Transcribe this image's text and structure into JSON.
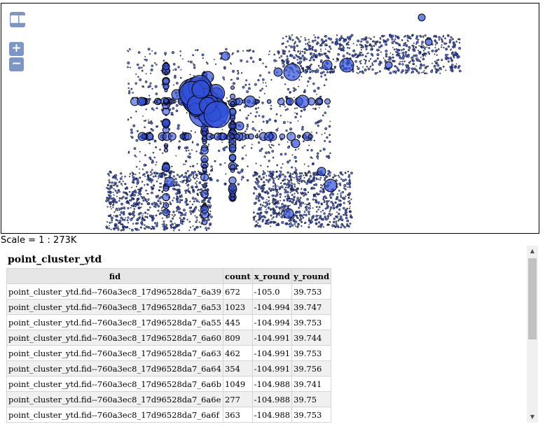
{
  "map": {
    "controls": {
      "layers_glyph": "■■■",
      "zoom_in": "+",
      "zoom_out": "−"
    },
    "symbol_color": "#3050d8",
    "symbol_stroke": "#000000",
    "scale_text": "Scale = 1 : 273K"
  },
  "results": {
    "layer_title": "point_cluster_ytd",
    "columns": [
      "fid",
      "count",
      "x_round",
      "y_round"
    ],
    "rows": [
      [
        "point_cluster_ytd.fid--760a3ec8_17d96528da7_6a39",
        "672",
        "-105.0",
        "39.753"
      ],
      [
        "point_cluster_ytd.fid--760a3ec8_17d96528da7_6a53",
        "1023",
        "-104.994",
        "39.747"
      ],
      [
        "point_cluster_ytd.fid--760a3ec8_17d96528da7_6a55",
        "445",
        "-104.994",
        "39.753"
      ],
      [
        "point_cluster_ytd.fid--760a3ec8_17d96528da7_6a60",
        "809",
        "-104.991",
        "39.744"
      ],
      [
        "point_cluster_ytd.fid--760a3ec8_17d96528da7_6a63",
        "462",
        "-104.991",
        "39.753"
      ],
      [
        "point_cluster_ytd.fid--760a3ec8_17d96528da7_6a64",
        "354",
        "-104.991",
        "39.756"
      ],
      [
        "point_cluster_ytd.fid--760a3ec8_17d96528da7_6a6b",
        "1049",
        "-104.988",
        "39.741"
      ],
      [
        "point_cluster_ytd.fid--760a3ec8_17d96528da7_6a6e",
        "277",
        "-104.988",
        "39.75"
      ],
      [
        "point_cluster_ytd.fid--760a3ec8_17d96528da7_6a6f",
        "363",
        "-104.988",
        "39.753"
      ]
    ]
  },
  "scrollbar": {
    "up_glyph": "▲",
    "down_glyph": "▼"
  }
}
